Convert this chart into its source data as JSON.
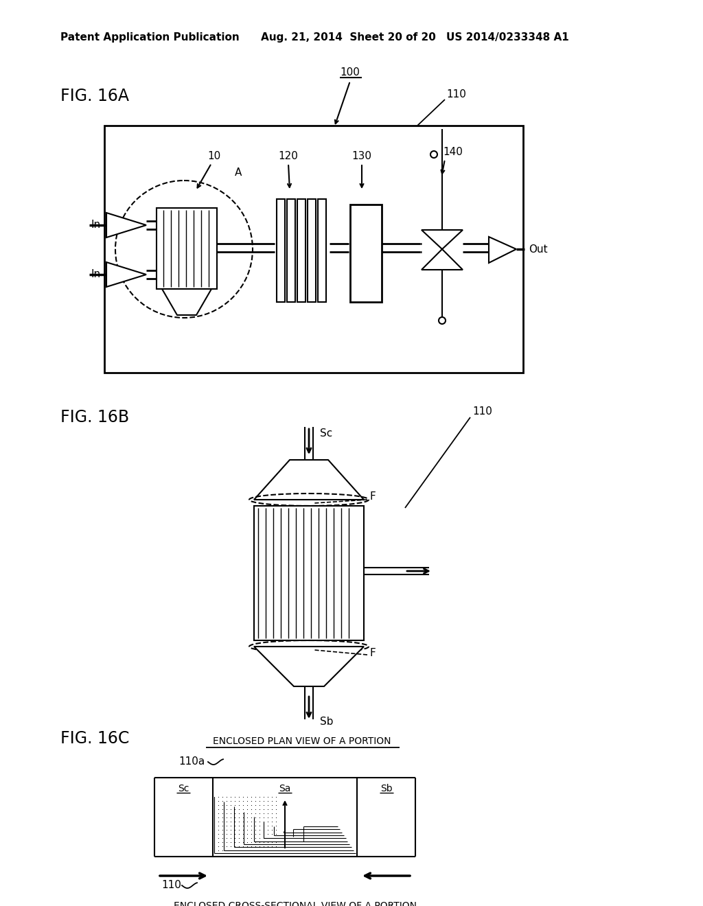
{
  "bg_color": "#ffffff",
  "header_text": "Patent Application Publication",
  "header_date": "Aug. 21, 2014  Sheet 20 of 20",
  "header_patent": "US 2014/0233348 A1",
  "fig16a_label": "FIG. 16A",
  "fig16b_label": "FIG. 16B",
  "fig16c_label": "FIG. 16C",
  "label_100": "100",
  "label_110_a": "110",
  "label_10": "10",
  "label_A": "A",
  "label_120": "120",
  "label_130": "130",
  "label_140": "140",
  "label_110_b": "110",
  "label_Sc_b": "Sc",
  "label_F_b1": "F",
  "label_F_b2": "F",
  "label_Sb_b": "Sb",
  "label_enclosed_plan": "ENCLOSED PLAN VIEW OF A PORTION",
  "label_110a_c": "110a",
  "label_Sc_c": "Sc",
  "label_Sa_c": "Sa",
  "label_Sb_c": "Sb",
  "label_110_c": "110",
  "label_enclosed_cross": "ENCLOSED CROSS-SECTIONAL VIEW OF A PORTION",
  "label_In1": "In",
  "label_In2": "In",
  "label_Out": "Out"
}
